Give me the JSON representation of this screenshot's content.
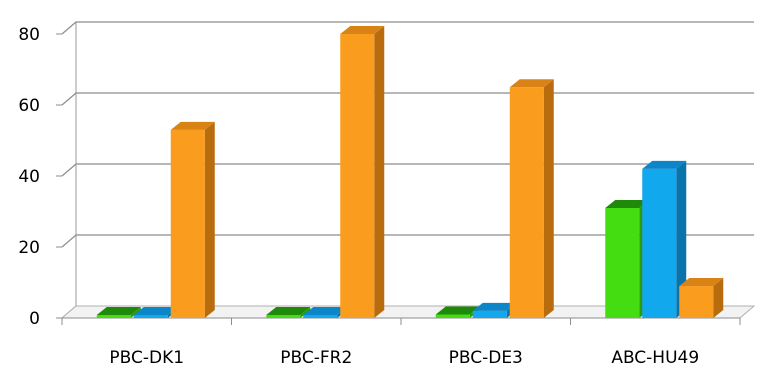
{
  "chart_data": {
    "type": "bar",
    "three_d": true,
    "categories": [
      "PBC-DK1",
      "PBC-FR2",
      "PBC-DE3",
      "ABC-HU49"
    ],
    "series": [
      {
        "values": [
          0,
          0,
          1,
          31
        ],
        "color": "#44dd11",
        "side_color": "#2c9a0c",
        "top_color": "#1f8a0a"
      },
      {
        "values": [
          0,
          0,
          2,
          42
        ],
        "color": "#12a8ee",
        "side_color": "#0a73aa",
        "top_color": "#0b86c8"
      },
      {
        "values": [
          53,
          80,
          65,
          9
        ],
        "color": "#fa9c1e",
        "side_color": "#b86c0e",
        "top_color": "#d98316"
      }
    ],
    "ylim": [
      0,
      80
    ],
    "yticks": [
      0,
      20,
      40,
      60,
      80
    ],
    "grid": true,
    "legend": "none",
    "title": "",
    "xlabel": "",
    "ylabel": ""
  }
}
